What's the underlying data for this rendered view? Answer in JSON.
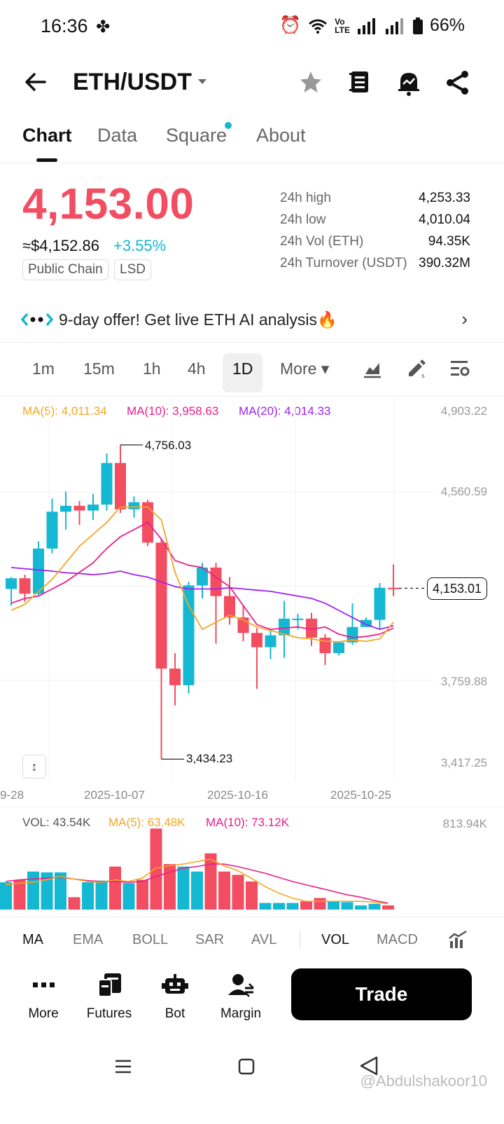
{
  "status_bar": {
    "time": "16:36",
    "battery": "66%",
    "icons": [
      "pinwheel-icon",
      "alarm-icon",
      "wifi-icon",
      "volte-icon",
      "signal-icon",
      "signal-icon",
      "battery-icon"
    ]
  },
  "header": {
    "pair": "ETH/USDT",
    "icons": [
      "back-arrow-icon",
      "dropdown-caret-icon",
      "star-icon",
      "notes-icon",
      "alert-bell-icon",
      "share-icon"
    ]
  },
  "tabs": [
    {
      "label": "Chart",
      "active": true
    },
    {
      "label": "Data",
      "active": false
    },
    {
      "label": "Square",
      "active": false
    },
    {
      "label": "About",
      "active": false
    }
  ],
  "price": {
    "last": "4,153.00",
    "approx_usd": "≈$4,152.86",
    "change": "+3.55%",
    "tags": [
      "Public Chain",
      "LSD"
    ],
    "color_down": "#f24d61",
    "color_up": "#14b8d2"
  },
  "stats": [
    {
      "label": "24h high",
      "value": "4,253.33"
    },
    {
      "label": "24h low",
      "value": "4,010.04"
    },
    {
      "label": "24h Vol (ETH)",
      "value": "94.35K"
    },
    {
      "label": "24h Turnover (USDT)",
      "value": "390.32M"
    }
  ],
  "banner": {
    "text": "9-day offer! Get live ETH AI analysis🔥"
  },
  "timeframes": [
    {
      "label": "1m",
      "active": false
    },
    {
      "label": "15m",
      "active": false
    },
    {
      "label": "1h",
      "active": false
    },
    {
      "label": "4h",
      "active": false
    },
    {
      "label": "1D",
      "active": true
    },
    {
      "label": "More ▾",
      "active": false
    }
  ],
  "chart_tools": [
    "chart-type-icon",
    "draw-icon",
    "chart-settings-icon"
  ],
  "ma_legend": {
    "ma5": "MA(5): 4,011.34",
    "ma10": "MA(10): 3,958.63",
    "ma20": "MA(20): 4,014.33",
    "ma5_color": "#f5a623",
    "ma10_color": "#e91e8c",
    "ma20_color": "#a020f0"
  },
  "chart_data": {
    "type": "candlestick",
    "y_ticks": [
      "4,903.22",
      "4,560.59",
      "3,759.88",
      "3,417.25"
    ],
    "x_ticks": [
      "9-28",
      "2025-10-07",
      "2025-10-16",
      "2025-10-25"
    ],
    "high_label": "4,756.03",
    "low_label": "3,434.23",
    "current_label": "4,153.01",
    "ylim": [
      3417.25,
      4903.22
    ],
    "candles": [
      {
        "o": 4150,
        "h": 4200,
        "l": 4080,
        "c": 4195
      },
      {
        "o": 4195,
        "h": 4210,
        "l": 4095,
        "c": 4130
      },
      {
        "o": 4130,
        "h": 4350,
        "l": 4120,
        "c": 4320
      },
      {
        "o": 4320,
        "h": 4530,
        "l": 4300,
        "c": 4475
      },
      {
        "o": 4475,
        "h": 4560,
        "l": 4400,
        "c": 4500
      },
      {
        "o": 4500,
        "h": 4520,
        "l": 4420,
        "c": 4480
      },
      {
        "o": 4480,
        "h": 4550,
        "l": 4440,
        "c": 4505
      },
      {
        "o": 4505,
        "h": 4720,
        "l": 4480,
        "c": 4680
      },
      {
        "o": 4680,
        "h": 4756,
        "l": 4470,
        "c": 4485
      },
      {
        "o": 4485,
        "h": 4540,
        "l": 4450,
        "c": 4515
      },
      {
        "o": 4515,
        "h": 4525,
        "l": 4330,
        "c": 4345
      },
      {
        "o": 4345,
        "h": 4360,
        "l": 3434,
        "c": 3815
      },
      {
        "o": 3815,
        "h": 3880,
        "l": 3660,
        "c": 3745
      },
      {
        "o": 3745,
        "h": 4180,
        "l": 3710,
        "c": 4165
      },
      {
        "o": 4165,
        "h": 4260,
        "l": 4110,
        "c": 4240
      },
      {
        "o": 4240,
        "h": 4260,
        "l": 3920,
        "c": 4120
      },
      {
        "o": 4120,
        "h": 4200,
        "l": 4000,
        "c": 4030
      },
      {
        "o": 4030,
        "h": 4080,
        "l": 3930,
        "c": 3965
      },
      {
        "o": 3965,
        "h": 3985,
        "l": 3730,
        "c": 3905
      },
      {
        "o": 3905,
        "h": 3975,
        "l": 3855,
        "c": 3955
      },
      {
        "o": 3955,
        "h": 4100,
        "l": 3860,
        "c": 4025
      },
      {
        "o": 4025,
        "h": 4045,
        "l": 3980,
        "c": 4025
      },
      {
        "o": 4025,
        "h": 4050,
        "l": 3910,
        "c": 3945
      },
      {
        "o": 3945,
        "h": 3960,
        "l": 3830,
        "c": 3880
      },
      {
        "o": 3880,
        "h": 3930,
        "l": 3870,
        "c": 3925
      },
      {
        "o": 3925,
        "h": 4090,
        "l": 3915,
        "c": 3990
      },
      {
        "o": 3990,
        "h": 4030,
        "l": 3990,
        "c": 4020
      },
      {
        "o": 4020,
        "h": 4175,
        "l": 3980,
        "c": 4155
      },
      {
        "o": 4155,
        "h": 4253,
        "l": 4120,
        "c": 4153
      }
    ],
    "ma5": [
      4060,
      4085,
      4140,
      4190,
      4260,
      4330,
      4380,
      4430,
      4495,
      4495,
      4495,
      4440,
      4220,
      4080,
      3980,
      4010,
      4040,
      4020,
      3990,
      3975,
      3960,
      3945,
      3940,
      3930,
      3928,
      3935,
      3930,
      3940,
      4010
    ],
    "ma10": [
      4090,
      4110,
      4120,
      4150,
      4180,
      4220,
      4260,
      4320,
      4370,
      4400,
      4430,
      4360,
      4270,
      4250,
      4240,
      4200,
      4160,
      4080,
      4000,
      3980,
      3985,
      3990,
      3980,
      3990,
      3960,
      3945,
      3950,
      3960,
      3985
    ],
    "ma20": [
      4240,
      4235,
      4230,
      4225,
      4218,
      4215,
      4210,
      4215,
      4225,
      4210,
      4200,
      4180,
      4160,
      4150,
      4150,
      4150,
      4155,
      4150,
      4145,
      4140,
      4130,
      4120,
      4110,
      4090,
      4060,
      4030,
      4000,
      3980,
      3995
    ]
  },
  "volume": {
    "vol": "VOL: 43.54K",
    "ma5": "MA(5): 63.48K",
    "ma10": "MA(10): 73.12K",
    "max_tick": "813.94K",
    "bars": [
      0.33,
      0.36,
      0.46,
      0.45,
      0.45,
      0.15,
      0.33,
      0.35,
      0.52,
      0.32,
      0.36,
      0.98,
      0.55,
      0.52,
      0.46,
      0.68,
      0.46,
      0.42,
      0.34,
      0.08,
      0.08,
      0.08,
      0.1,
      0.14,
      0.1,
      0.09,
      0.05,
      0.07,
      0.05
    ],
    "bar_up": [
      true,
      false,
      true,
      true,
      true,
      false,
      true,
      true,
      false,
      true,
      false,
      false,
      false,
      true,
      true,
      false,
      false,
      false,
      false,
      true,
      true,
      true,
      false,
      false,
      true,
      true,
      true,
      true,
      false
    ],
    "ma5_line": [
      0.3,
      0.32,
      0.33,
      0.36,
      0.4,
      0.37,
      0.34,
      0.33,
      0.36,
      0.34,
      0.38,
      0.5,
      0.53,
      0.55,
      0.58,
      0.61,
      0.53,
      0.47,
      0.38,
      0.28,
      0.2,
      0.14,
      0.1,
      0.1,
      0.1,
      0.1,
      0.1,
      0.09,
      0.07
    ],
    "ma10_line": [
      0.34,
      0.36,
      0.37,
      0.38,
      0.39,
      0.37,
      0.35,
      0.34,
      0.34,
      0.33,
      0.34,
      0.4,
      0.45,
      0.5,
      0.52,
      0.55,
      0.55,
      0.52,
      0.48,
      0.44,
      0.39,
      0.34,
      0.3,
      0.26,
      0.22,
      0.18,
      0.15,
      0.11,
      0.08
    ]
  },
  "indicators": [
    {
      "label": "MA",
      "active": true
    },
    {
      "label": "EMA",
      "active": false
    },
    {
      "label": "BOLL",
      "active": false
    },
    {
      "label": "SAR",
      "active": false
    },
    {
      "label": "AVL",
      "active": false
    },
    {
      "label": "VOL",
      "active": true
    },
    {
      "label": "MACD",
      "active": false
    }
  ],
  "actions": [
    {
      "label": "More",
      "icon": "more-dots-icon"
    },
    {
      "label": "Futures",
      "icon": "futures-icon"
    },
    {
      "label": "Bot",
      "icon": "bot-icon"
    },
    {
      "label": "Margin",
      "icon": "margin-icon"
    }
  ],
  "trade_button": "Trade",
  "watermark": "@Abdulshakoor10"
}
